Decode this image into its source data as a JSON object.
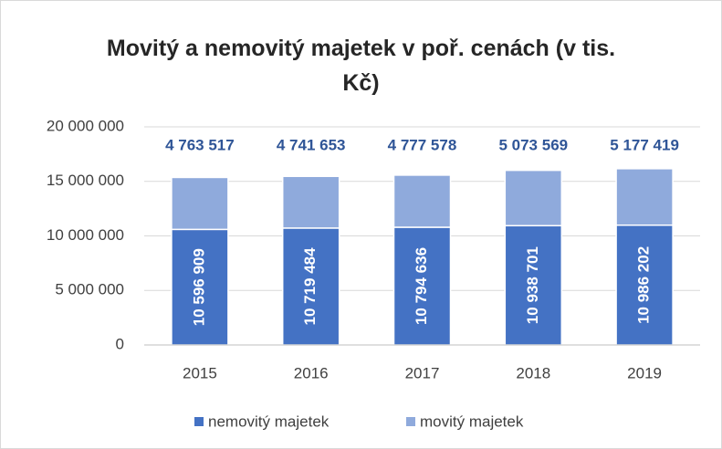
{
  "chart_data": {
    "type": "bar",
    "stacked": true,
    "title": "Movitý a nemovitý majetek v poř. cenách (v tis. Kč)",
    "categories": [
      "2015",
      "2016",
      "2017",
      "2018",
      "2019"
    ],
    "series": [
      {
        "name": "nemovitý majetek",
        "color": "#4472c4",
        "values": [
          10596909,
          10719484,
          10794636,
          10938701,
          10986202
        ],
        "value_labels": [
          "10 596 909",
          "10 719 484",
          "10 794 636",
          "10 938 701",
          "10 986 202"
        ]
      },
      {
        "name": "movitý majetek",
        "color": "#8faadc",
        "values": [
          4763517,
          4741653,
          4777578,
          5073569,
          5177419
        ],
        "value_labels": [
          "4 763 517",
          "4 741 653",
          "4 777 578",
          "5 073 569",
          "5 177 419"
        ]
      }
    ],
    "ylim": [
      0,
      20000000
    ],
    "yticks": [
      0,
      {
        "value": 5000000,
        "label": "5 000 000"
      },
      {
        "value": 10000000,
        "label": "10 000 000"
      },
      {
        "value": 15000000,
        "label": "15 000 000"
      },
      {
        "value": 20000000,
        "label": "20 000 000"
      }
    ],
    "grid": true,
    "legend": "bottom"
  }
}
